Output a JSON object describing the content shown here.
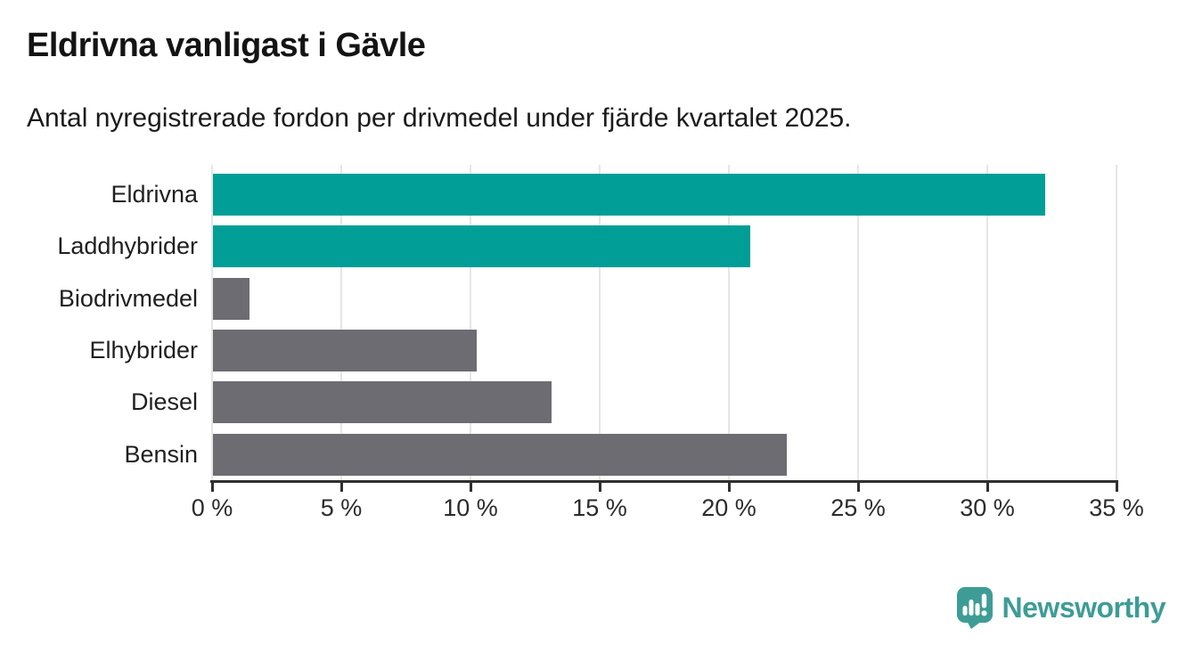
{
  "header": {
    "title": "Eldrivna vanligast i Gävle",
    "subtitle": "Antal nyregistrerade fordon per drivmedel under fjärde kvartalet 2025."
  },
  "chart_data": {
    "type": "bar",
    "orientation": "horizontal",
    "title": "Eldrivna vanligast i Gävle",
    "subtitle": "Antal nyregistrerade fordon per drivmedel under fjärde kvartalet 2025.",
    "categories": [
      "Eldrivna",
      "Laddhybrider",
      "Biodrivmedel",
      "Elhybrider",
      "Diesel",
      "Bensin"
    ],
    "values": [
      32.2,
      20.8,
      1.4,
      10.2,
      13.1,
      22.2
    ],
    "unit": "%",
    "bar_colors": [
      "#009e96",
      "#009e96",
      "#6d6c72",
      "#6d6c72",
      "#6d6c72",
      "#6d6c72"
    ],
    "highlight_color": "#009e96",
    "default_color": "#6d6c72",
    "highlighted_categories": [
      "Eldrivna",
      "Laddhybrider"
    ],
    "xlim": [
      0,
      35
    ],
    "x_ticks": [
      0,
      5,
      10,
      15,
      20,
      25,
      30,
      35
    ],
    "x_tick_labels": [
      "0 %",
      "5 %",
      "10 %",
      "15 %",
      "20 %",
      "25 %",
      "30 %",
      "35 %"
    ],
    "grid": "vertical-only",
    "legend": "none"
  },
  "branding": {
    "logo_text": "Newsworthy",
    "logo_color": "#3e9c96",
    "logo_icon": "newsworthy-badge-icon"
  }
}
